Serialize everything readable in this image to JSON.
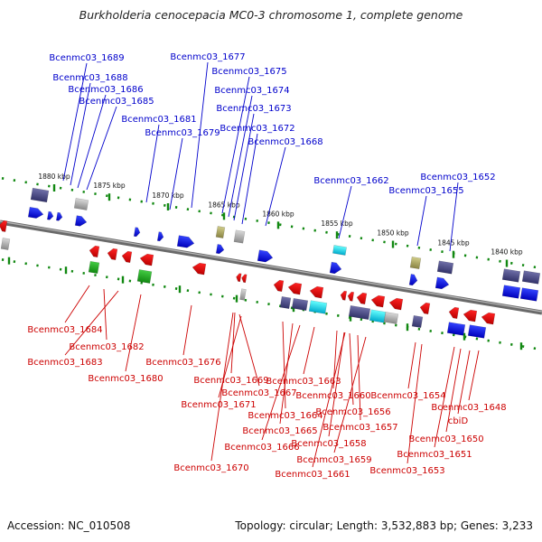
{
  "title": "Burkholderia cenocepacia MC0-3 chromosome 1, complete genome",
  "accession": "Accession: NC_010508",
  "topology": "Topology: circular; Length: 3,532,883 bp; Genes: 3,233",
  "colors": {
    "forward_label": "#0000cc",
    "reverse_label": "#cc0000",
    "forward_gene": "#0000dd",
    "reverse_gene": "#dd0000",
    "ruler_dash": "#118811",
    "backbone": "#777777"
  },
  "ruler_ticks": [
    "1880 kbp",
    "1875 kbp",
    "1870 kbp",
    "1865 kbp",
    "1860 kbp",
    "1855 kbp",
    "1850 kbp",
    "1845 kbp",
    "1840 kbp"
  ],
  "forward_labels": [
    "Bcenmc03_1689",
    "Bcenmc03_1688",
    "Bcenmc03_1686",
    "Bcenmc03_1685",
    "Bcenmc03_1681",
    "Bcenmc03_1679",
    "Bcenmc03_1677",
    "Bcenmc03_1675",
    "Bcenmc03_1674",
    "Bcenmc03_1673",
    "Bcenmc03_1672",
    "Bcenmc03_1668",
    "Bcenmc03_1662",
    "Bcenmc03_1655",
    "Bcenmc03_1652"
  ],
  "reverse_labels": [
    "Bcenmc03_1684",
    "Bcenmc03_1682",
    "Bcenmc03_1683",
    "Bcenmc03_1680",
    "Bcenmc03_1676",
    "Bcenmc03_1669",
    "Bcenmc03_1667",
    "Bcenmc03_1671",
    "Bcenmc03_1664",
    "Bcenmc03_1665",
    "Bcenmc03_1666",
    "Bcenmc03_1670",
    "Bcenmc03_1663",
    "Bcenmc03_1660",
    "Bcenmc03_1656",
    "Bcenmc03_1657",
    "Bcenmc03_1658",
    "Bcenmc03_1659",
    "Bcenmc03_1661",
    "Bcenmc03_1654",
    "Bcenmc03_1650",
    "Bcenmc03_1651",
    "Bcenmc03_1653",
    "Bcenmc03_1648",
    "cbiD"
  ]
}
